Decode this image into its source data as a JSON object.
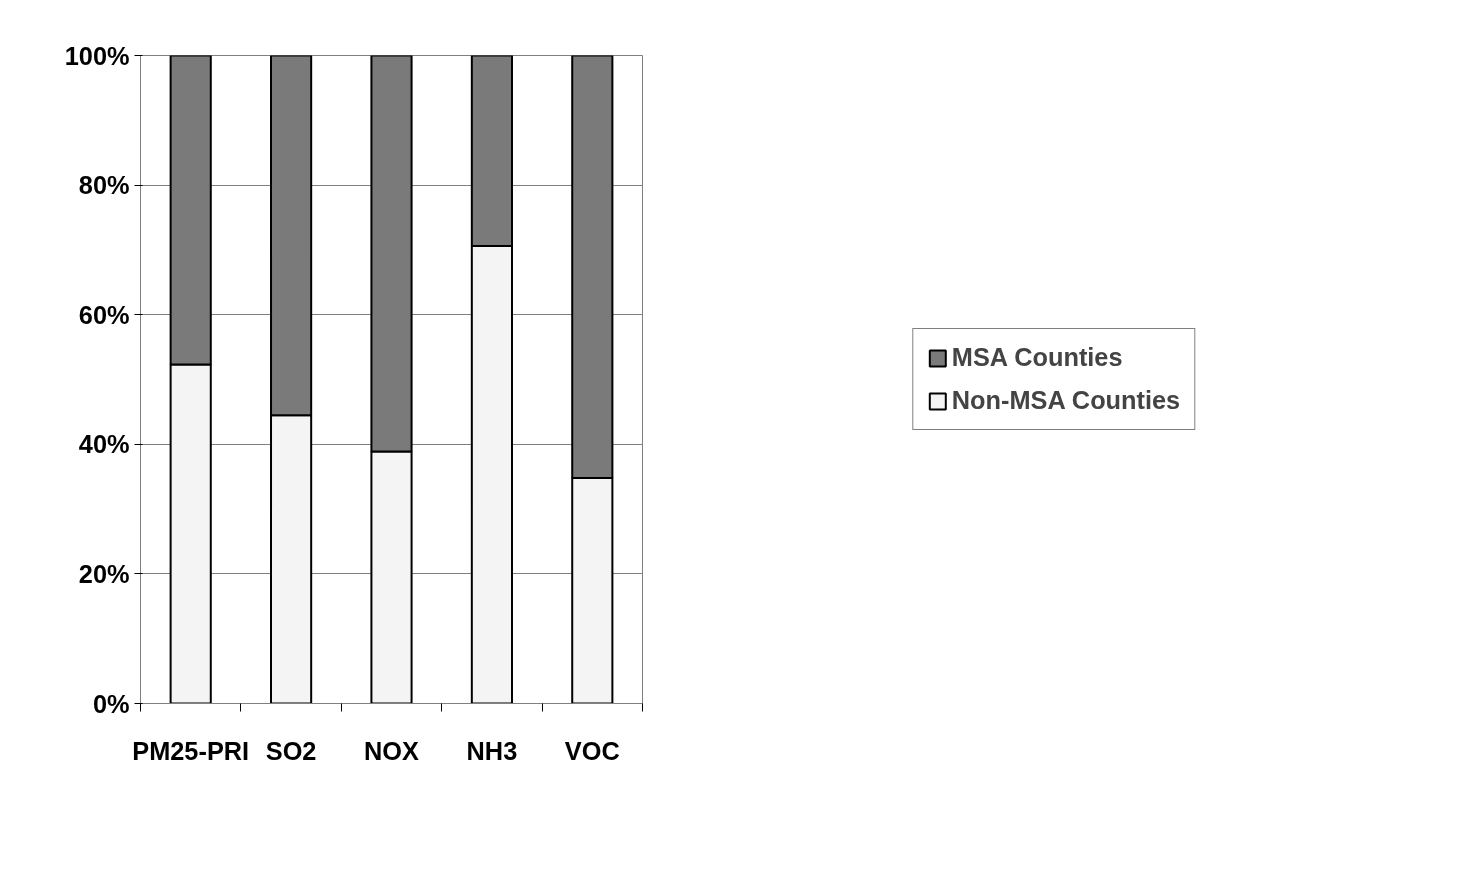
{
  "chart_data": {
    "type": "bar",
    "stacked": true,
    "categories": [
      "PM25-PRI",
      "SO2",
      "NOX",
      "NH3",
      "VOC"
    ],
    "series": [
      {
        "name": "Non-MSA Counties",
        "color": "#f4f4f4",
        "values": [
          52.3,
          44.5,
          38.9,
          70.6,
          34.8
        ]
      },
      {
        "name": "MSA Counties",
        "color": "#7a7a7a",
        "values": [
          47.7,
          55.5,
          61.1,
          29.4,
          65.2
        ]
      }
    ],
    "ylim": [
      0,
      100
    ],
    "yticks": [
      {
        "value": 0,
        "label": "0%"
      },
      {
        "value": 20,
        "label": "20%"
      },
      {
        "value": 40,
        "label": "40%"
      },
      {
        "value": 60,
        "label": "60%"
      },
      {
        "value": 80,
        "label": "80%"
      },
      {
        "value": 100,
        "label": "100%"
      }
    ],
    "grid": "y",
    "legend": "right"
  }
}
